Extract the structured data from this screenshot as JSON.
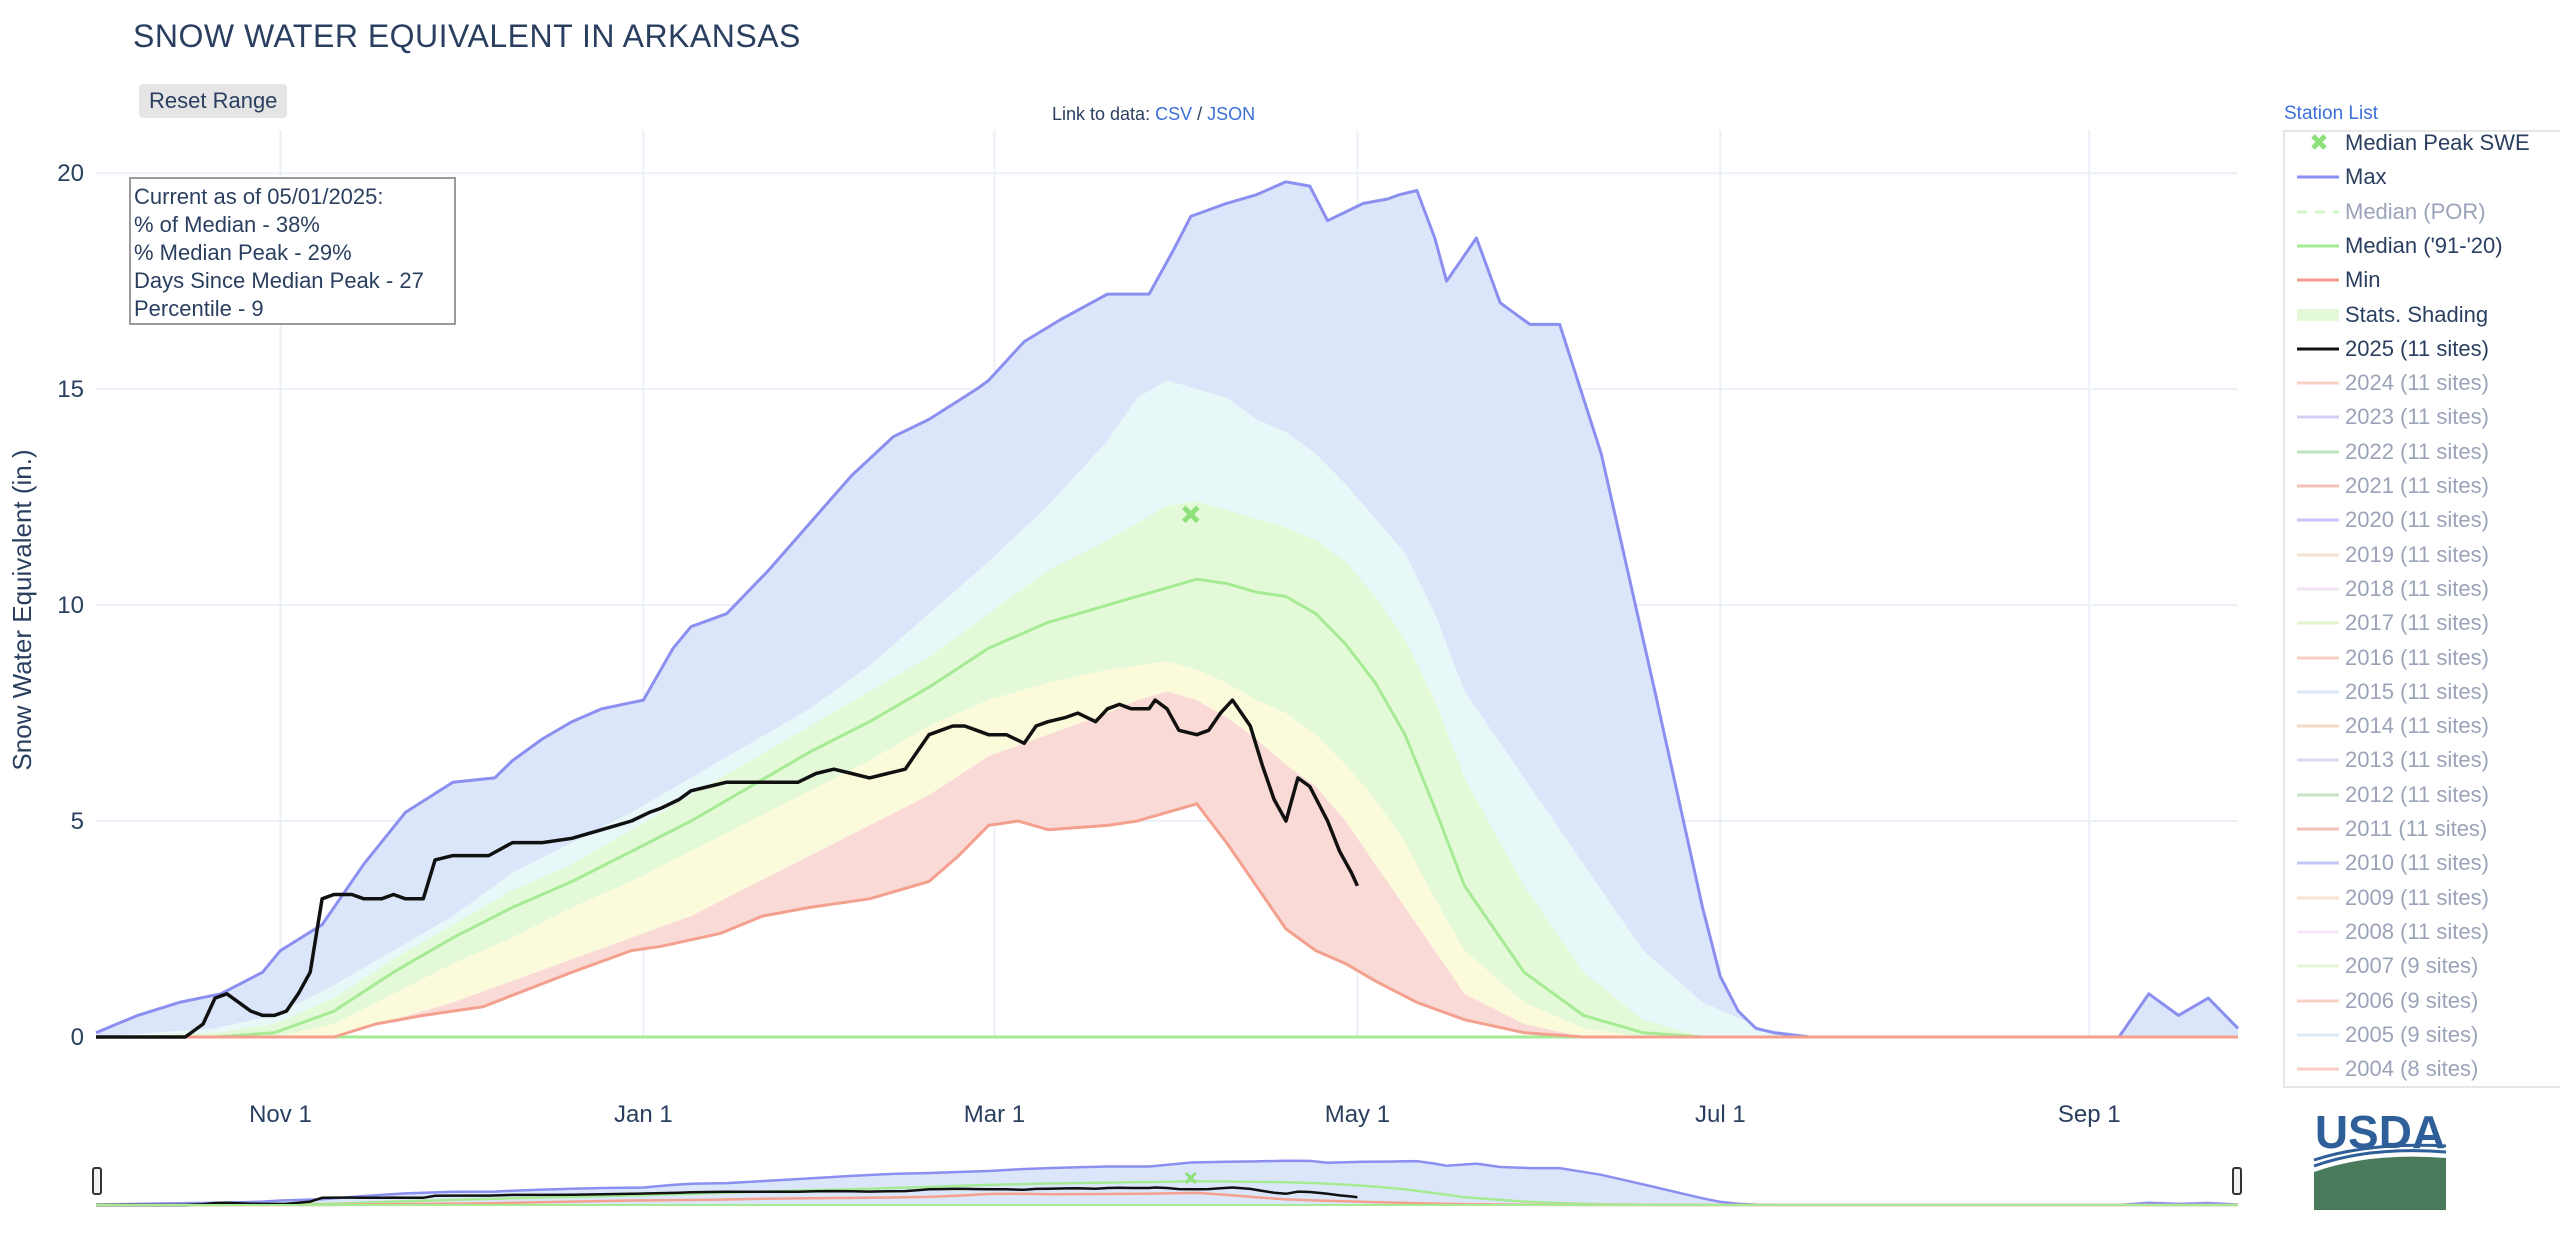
{
  "page": {
    "title": "SNOW WATER EQUIVALENT IN ARKANSAS",
    "reset_label": "Reset Range",
    "link_prefix": "Link to data:",
    "csv_label": "CSV",
    "slash": "/",
    "json_label": "JSON",
    "station_list_label": "Station List",
    "logo_text": "USDA"
  },
  "status_box": {
    "line1": "Current as of 05/01/2025:",
    "line2": "% of Median - 38%",
    "line3": "% Median Peak - 29%",
    "line4": "Days Since Median Peak - 27",
    "line5": "Percentile - 9"
  },
  "chart_data": {
    "type": "line",
    "title": "SNOW WATER EQUIVALENT IN ARKANSAS",
    "xlabel": "",
    "ylabel": "Snow Water Equivalent (in.)",
    "ylim": [
      0,
      21
    ],
    "xlim_days": [
      0,
      360
    ],
    "x_ticks": [
      {
        "label": "Nov  1",
        "day": 31
      },
      {
        "label": "Jan  1",
        "day": 92
      },
      {
        "label": "Mar  1",
        "day": 151
      },
      {
        "label": "May  1",
        "day": 212
      },
      {
        "label": "Jul  1",
        "day": 273
      },
      {
        "label": "Sep  1",
        "day": 335
      }
    ],
    "y_ticks": [
      0,
      5,
      10,
      15,
      20
    ],
    "grid": true,
    "legend_position": "right",
    "colors": {
      "max": "#8b8ff0",
      "min": "#f4a08e",
      "median": "#a5eb94",
      "current": "#111111",
      "median_peak": "#8ee07a",
      "band_blue": "#dce6fa",
      "band_cyan": "#e8f8f8",
      "band_green": "#e4f9d8",
      "band_yellow": "#fbfbdc",
      "band_red": "#fadad6"
    },
    "median_peak_point": {
      "day": 184,
      "value": 12.1
    },
    "series": [
      {
        "name": "Max",
        "x": [
          0,
          7,
          14,
          21,
          28,
          31,
          38,
          45,
          52,
          60,
          67,
          70,
          75,
          80,
          85,
          92,
          97,
          100,
          106,
          113,
          120,
          127,
          134,
          140,
          148,
          150,
          156,
          162,
          170,
          177,
          181,
          184,
          190,
          195,
          200,
          204,
          207,
          213,
          217,
          219,
          222,
          225,
          227,
          232,
          236,
          241,
          246,
          253,
          262,
          270,
          273,
          276,
          279,
          282,
          288,
          300,
          330,
          340,
          345,
          350,
          355,
          360
        ],
        "values": [
          0.1,
          0.5,
          0.8,
          1.0,
          1.5,
          2.0,
          2.6,
          4.0,
          5.2,
          5.9,
          6.0,
          6.4,
          6.9,
          7.3,
          7.6,
          7.8,
          9.0,
          9.5,
          9.8,
          10.8,
          11.9,
          13.0,
          13.9,
          14.3,
          15.0,
          15.2,
          16.1,
          16.6,
          17.2,
          17.2,
          18.2,
          19.0,
          19.3,
          19.5,
          19.8,
          19.7,
          18.9,
          19.3,
          19.4,
          19.5,
          19.6,
          18.5,
          17.5,
          18.5,
          17.0,
          16.5,
          16.5,
          13.5,
          8.0,
          3.0,
          1.4,
          0.6,
          0.2,
          0.1,
          0,
          0,
          0,
          0,
          1.0,
          0.5,
          0.9,
          0.2
        ]
      },
      {
        "name": "Median ('91-'20)",
        "x": [
          0,
          10,
          20,
          30,
          40,
          50,
          60,
          70,
          80,
          90,
          100,
          110,
          120,
          130,
          140,
          150,
          160,
          170,
          180,
          185,
          190,
          195,
          200,
          205,
          210,
          215,
          220,
          225,
          230,
          240,
          250,
          260,
          270,
          280,
          290,
          300,
          360
        ],
        "values": [
          0,
          0,
          0,
          0.1,
          0.6,
          1.5,
          2.3,
          3.0,
          3.6,
          4.3,
          5.0,
          5.8,
          6.6,
          7.3,
          8.1,
          9.0,
          9.6,
          10.0,
          10.4,
          10.6,
          10.5,
          10.3,
          10.2,
          9.8,
          9.1,
          8.2,
          7.0,
          5.3,
          3.5,
          1.5,
          0.5,
          0.1,
          0,
          0,
          0,
          0,
          0
        ]
      },
      {
        "name": "Min",
        "x": [
          0,
          40,
          47,
          55,
          65,
          80,
          90,
          95,
          105,
          112,
          120,
          130,
          140,
          145,
          150,
          155,
          160,
          170,
          175,
          180,
          185,
          190,
          195,
          200,
          205,
          210,
          215,
          222,
          230,
          240,
          250,
          360
        ],
        "values": [
          0,
          0,
          0.3,
          0.5,
          0.7,
          1.5,
          2.0,
          2.1,
          2.4,
          2.8,
          3.0,
          3.2,
          3.6,
          4.2,
          4.9,
          5.0,
          4.8,
          4.9,
          5.0,
          5.2,
          5.4,
          4.5,
          3.5,
          2.5,
          2.0,
          1.7,
          1.3,
          0.8,
          0.4,
          0.1,
          0,
          0
        ]
      },
      {
        "name": "2025 (11 sites)",
        "x": [
          0,
          15,
          18,
          20,
          22,
          24,
          26,
          28,
          30,
          32,
          34,
          36,
          38,
          40,
          43,
          45,
          48,
          50,
          52,
          55,
          57,
          60,
          62,
          64,
          66,
          70,
          72,
          75,
          80,
          85,
          90,
          93,
          95,
          98,
          100,
          103,
          106,
          110,
          113,
          118,
          121,
          124,
          127,
          130,
          133,
          136,
          138,
          140,
          142,
          144,
          146,
          148,
          150,
          153,
          156,
          158,
          160,
          163,
          165,
          168,
          170,
          172,
          174,
          177,
          178,
          180,
          182,
          185,
          187,
          189,
          191,
          194,
          196,
          198,
          200,
          202,
          204,
          207,
          209,
          211,
          212
        ],
        "values": [
          0,
          0,
          0.3,
          0.9,
          1.0,
          0.8,
          0.6,
          0.5,
          0.5,
          0.6,
          1.0,
          1.5,
          3.2,
          3.3,
          3.3,
          3.2,
          3.2,
          3.3,
          3.2,
          3.2,
          4.1,
          4.2,
          4.2,
          4.2,
          4.2,
          4.5,
          4.5,
          4.5,
          4.6,
          4.8,
          5.0,
          5.2,
          5.3,
          5.5,
          5.7,
          5.8,
          5.9,
          5.9,
          5.9,
          5.9,
          6.1,
          6.2,
          6.1,
          6.0,
          6.1,
          6.2,
          6.6,
          7.0,
          7.1,
          7.2,
          7.2,
          7.1,
          7.0,
          7.0,
          6.8,
          7.2,
          7.3,
          7.4,
          7.5,
          7.3,
          7.6,
          7.7,
          7.6,
          7.6,
          7.8,
          7.6,
          7.1,
          7.0,
          7.1,
          7.5,
          7.8,
          7.2,
          6.3,
          5.5,
          5.0,
          6.0,
          5.8,
          5.0,
          4.3,
          3.8,
          3.5
        ]
      }
    ],
    "bands": {
      "x": [
        0,
        20,
        30,
        40,
        50,
        60,
        70,
        80,
        90,
        100,
        110,
        120,
        130,
        140,
        150,
        160,
        170,
        175,
        180,
        185,
        190,
        195,
        200,
        205,
        210,
        215,
        220,
        225,
        230,
        240,
        250,
        260,
        270,
        280,
        290,
        300,
        330,
        345,
        355,
        360
      ],
      "p90": [
        0,
        0.2,
        0.5,
        1.2,
        2.0,
        2.8,
        3.8,
        4.5,
        5.2,
        6.0,
        6.8,
        7.6,
        8.6,
        9.8,
        11.0,
        12.3,
        13.8,
        14.8,
        15.2,
        15.0,
        14.8,
        14.3,
        14.0,
        13.5,
        12.8,
        12.0,
        11.2,
        9.8,
        8.0,
        6.0,
        4.0,
        2.0,
        0.8,
        0.2,
        0,
        0,
        0,
        0,
        0,
        0
      ],
      "p70": [
        0,
        0.1,
        0.3,
        0.9,
        1.8,
        2.6,
        3.4,
        4.0,
        4.8,
        5.6,
        6.4,
        7.2,
        8.0,
        8.8,
        9.8,
        10.8,
        11.5,
        11.9,
        12.3,
        12.4,
        12.2,
        12.0,
        11.8,
        11.5,
        11.0,
        10.2,
        9.2,
        7.8,
        6.0,
        3.5,
        1.5,
        0.4,
        0,
        0,
        0,
        0,
        0,
        0,
        0,
        0
      ],
      "p50": [
        0,
        0,
        0.1,
        0.6,
        1.5,
        2.3,
        3.0,
        3.6,
        4.3,
        5.0,
        5.8,
        6.6,
        7.3,
        8.1,
        9.0,
        9.6,
        10.0,
        10.2,
        10.4,
        10.6,
        10.5,
        10.3,
        10.2,
        9.8,
        9.1,
        8.2,
        7.0,
        5.3,
        3.5,
        1.5,
        0.5,
        0.1,
        0,
        0,
        0,
        0,
        0,
        0,
        0,
        0
      ],
      "p30": [
        0,
        0,
        0,
        0.3,
        1.0,
        1.7,
        2.3,
        3.0,
        3.6,
        4.3,
        5.0,
        5.7,
        6.4,
        7.2,
        7.8,
        8.2,
        8.5,
        8.6,
        8.7,
        8.5,
        8.2,
        7.8,
        7.5,
        7.0,
        6.3,
        5.5,
        4.5,
        3.2,
        2.0,
        0.8,
        0.2,
        0,
        0,
        0,
        0,
        0,
        0,
        0,
        0,
        0
      ],
      "p10": [
        0,
        0,
        0,
        0,
        0.4,
        0.8,
        1.3,
        1.8,
        2.3,
        2.8,
        3.5,
        4.2,
        4.9,
        5.6,
        6.5,
        7.0,
        7.5,
        7.8,
        8.0,
        7.8,
        7.4,
        6.9,
        6.3,
        5.8,
        5.0,
        4.0,
        3.0,
        2.0,
        1.0,
        0.3,
        0,
        0,
        0,
        0,
        0,
        0,
        0,
        0,
        0,
        0
      ]
    },
    "navigator": {
      "ylim": [
        0,
        21
      ]
    }
  },
  "legend": [
    {
      "label": "Median Peak SWE",
      "kind": "marker",
      "color": "#8ee07a",
      "active": true
    },
    {
      "label": "Max",
      "kind": "line",
      "color": "#8b8ff0",
      "active": true
    },
    {
      "label": "Median (POR)",
      "kind": "dash",
      "color": "#a5eb94",
      "active": false
    },
    {
      "label": "Median ('91-'20)",
      "kind": "line",
      "color": "#a5eb94",
      "active": true
    },
    {
      "label": "Min",
      "kind": "line",
      "color": "#f4a08e",
      "active": true
    },
    {
      "label": "Stats. Shading",
      "kind": "fill",
      "color": "#e4f9d8",
      "active": true
    },
    {
      "label": "2025 (11 sites)",
      "kind": "line",
      "color": "#111111",
      "active": true
    },
    {
      "label": "2024 (11 sites)",
      "kind": "line",
      "color": "#f4a08e",
      "active": false
    },
    {
      "label": "2023 (11 sites)",
      "kind": "line",
      "color": "#a4a4ec",
      "active": false
    },
    {
      "label": "2022 (11 sites)",
      "kind": "line",
      "color": "#7fc47f",
      "active": false
    },
    {
      "label": "2021 (11 sites)",
      "kind": "line",
      "color": "#e8826f",
      "active": false
    },
    {
      "label": "2020 (11 sites)",
      "kind": "line",
      "color": "#8b8ff0",
      "active": false
    },
    {
      "label": "2019 (11 sites)",
      "kind": "line",
      "color": "#e6c7a0",
      "active": false
    },
    {
      "label": "2018 (11 sites)",
      "kind": "line",
      "color": "#e7c9ea",
      "active": false
    },
    {
      "label": "2017 (11 sites)",
      "kind": "line",
      "color": "#cde89a",
      "active": false
    },
    {
      "label": "2016 (11 sites)",
      "kind": "line",
      "color": "#f4a08e",
      "active": false
    },
    {
      "label": "2015 (11 sites)",
      "kind": "line",
      "color": "#b9d3f1",
      "active": false
    },
    {
      "label": "2014 (11 sites)",
      "kind": "line",
      "color": "#f1b58c",
      "active": false
    },
    {
      "label": "2013 (11 sites)",
      "kind": "line",
      "color": "#bdb4ec",
      "active": false
    },
    {
      "label": "2012 (11 sites)",
      "kind": "line",
      "color": "#90c890",
      "active": false
    },
    {
      "label": "2011 (11 sites)",
      "kind": "line",
      "color": "#e8826f",
      "active": false
    },
    {
      "label": "2010 (11 sites)",
      "kind": "line",
      "color": "#8b8ff0",
      "active": false
    },
    {
      "label": "2009 (11 sites)",
      "kind": "line",
      "color": "#f1c9a0",
      "active": false
    },
    {
      "label": "2008 (11 sites)",
      "kind": "line",
      "color": "#edd0ee",
      "active": false
    },
    {
      "label": "2007 (9 sites)",
      "kind": "line",
      "color": "#cdeea8",
      "active": false
    },
    {
      "label": "2006 (9 sites)",
      "kind": "line",
      "color": "#f4a08e",
      "active": false
    },
    {
      "label": "2005 (9 sites)",
      "kind": "line",
      "color": "#b9d8ee",
      "active": false
    },
    {
      "label": "2004 (8 sites)",
      "kind": "line",
      "color": "#f4a08e",
      "active": false
    }
  ]
}
